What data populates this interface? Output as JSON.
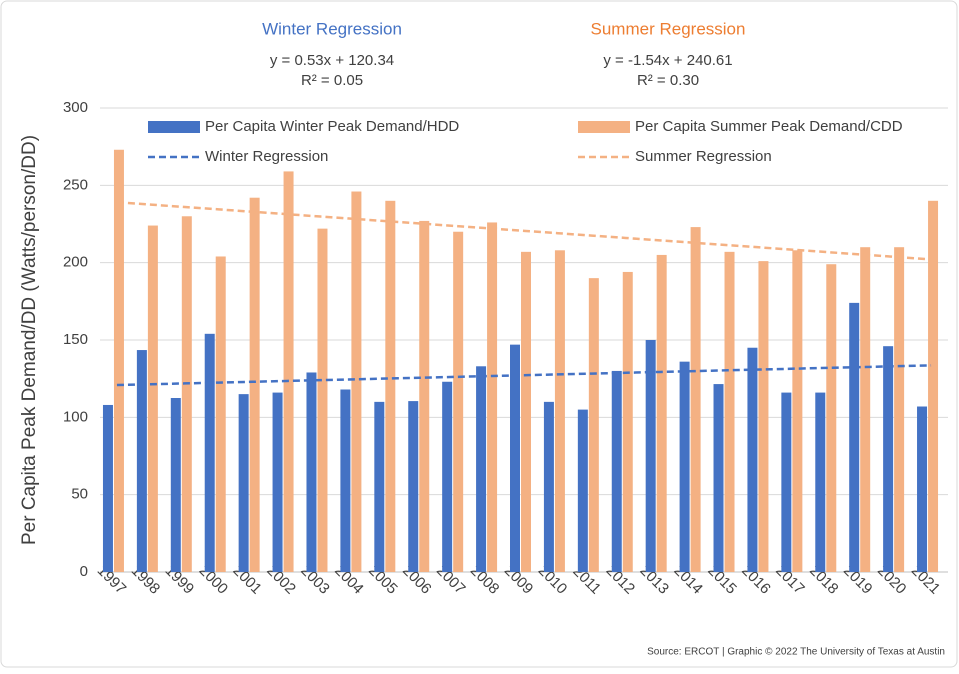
{
  "chart_data": {
    "type": "bar",
    "ylabel": "Per Capita Peak Demand/DD (Watts/person/DD)",
    "annotations": [
      {
        "title": "Winter Regression",
        "equation": "y = 0.53x + 120.34",
        "r2": "R² = 0.05",
        "color": "#4472c4"
      },
      {
        "title": "Summer Regression",
        "equation": "y = -1.54x + 240.61",
        "r2": "R² = 0.30",
        "color": "#ed7d31"
      }
    ],
    "source": "Source: ERCOT | Graphic © 2022 The University of Texas at Austin",
    "categories": [
      "1997",
      "1998",
      "1999",
      "2000",
      "2001",
      "2002",
      "2003",
      "2004",
      "2005",
      "2006",
      "2007",
      "2008",
      "2009",
      "2010",
      "2011",
      "2012",
      "2013",
      "2014",
      "2015",
      "2016",
      "2017",
      "2018",
      "2019",
      "2020",
      "2021"
    ],
    "series": [
      {
        "name": "Per Capita Winter Peak Demand/HDD",
        "type": "bar",
        "color": "#4472c4",
        "values": [
          108,
          143.5,
          112.5,
          154,
          115,
          116,
          129,
          118,
          110,
          110.5,
          123,
          133,
          147,
          110,
          105,
          130,
          150,
          136,
          121.5,
          145,
          116,
          116,
          174,
          146,
          107
        ]
      },
      {
        "name": "Per Capita Summer Peak Demand/CDD",
        "type": "bar",
        "color": "#f4b183",
        "values": [
          273,
          224,
          230,
          204,
          242,
          259,
          222,
          246,
          240,
          227,
          220,
          226,
          207,
          208,
          190,
          194,
          205,
          223,
          207,
          201,
          208,
          199,
          210,
          210,
          240
        ]
      },
      {
        "name": "Winter Regression",
        "type": "line",
        "dashed": true,
        "color": "#4472c4",
        "values": [
          120.87,
          121.4,
          121.93,
          122.46,
          122.99,
          123.52,
          124.05,
          124.58,
          125.11,
          125.64,
          126.17,
          126.7,
          127.23,
          127.76,
          128.29,
          128.82,
          129.35,
          129.88,
          130.41,
          130.94,
          131.47,
          132,
          132.53,
          133.06,
          133.59
        ]
      },
      {
        "name": "Summer Regression",
        "type": "line",
        "dashed": true,
        "color": "#f4b183",
        "values": [
          239.07,
          237.53,
          235.99,
          234.45,
          232.91,
          231.37,
          229.83,
          228.29,
          226.75,
          225.21,
          223.67,
          222.13,
          220.59,
          219.05,
          217.51,
          215.97,
          214.43,
          212.89,
          211.35,
          209.81,
          208.27,
          206.73,
          205.19,
          203.65,
          202.11
        ]
      }
    ],
    "ylim": [
      0,
      300
    ],
    "yticks": [
      0,
      50,
      100,
      150,
      200,
      250,
      300
    ],
    "grid": true,
    "legend": "top"
  }
}
